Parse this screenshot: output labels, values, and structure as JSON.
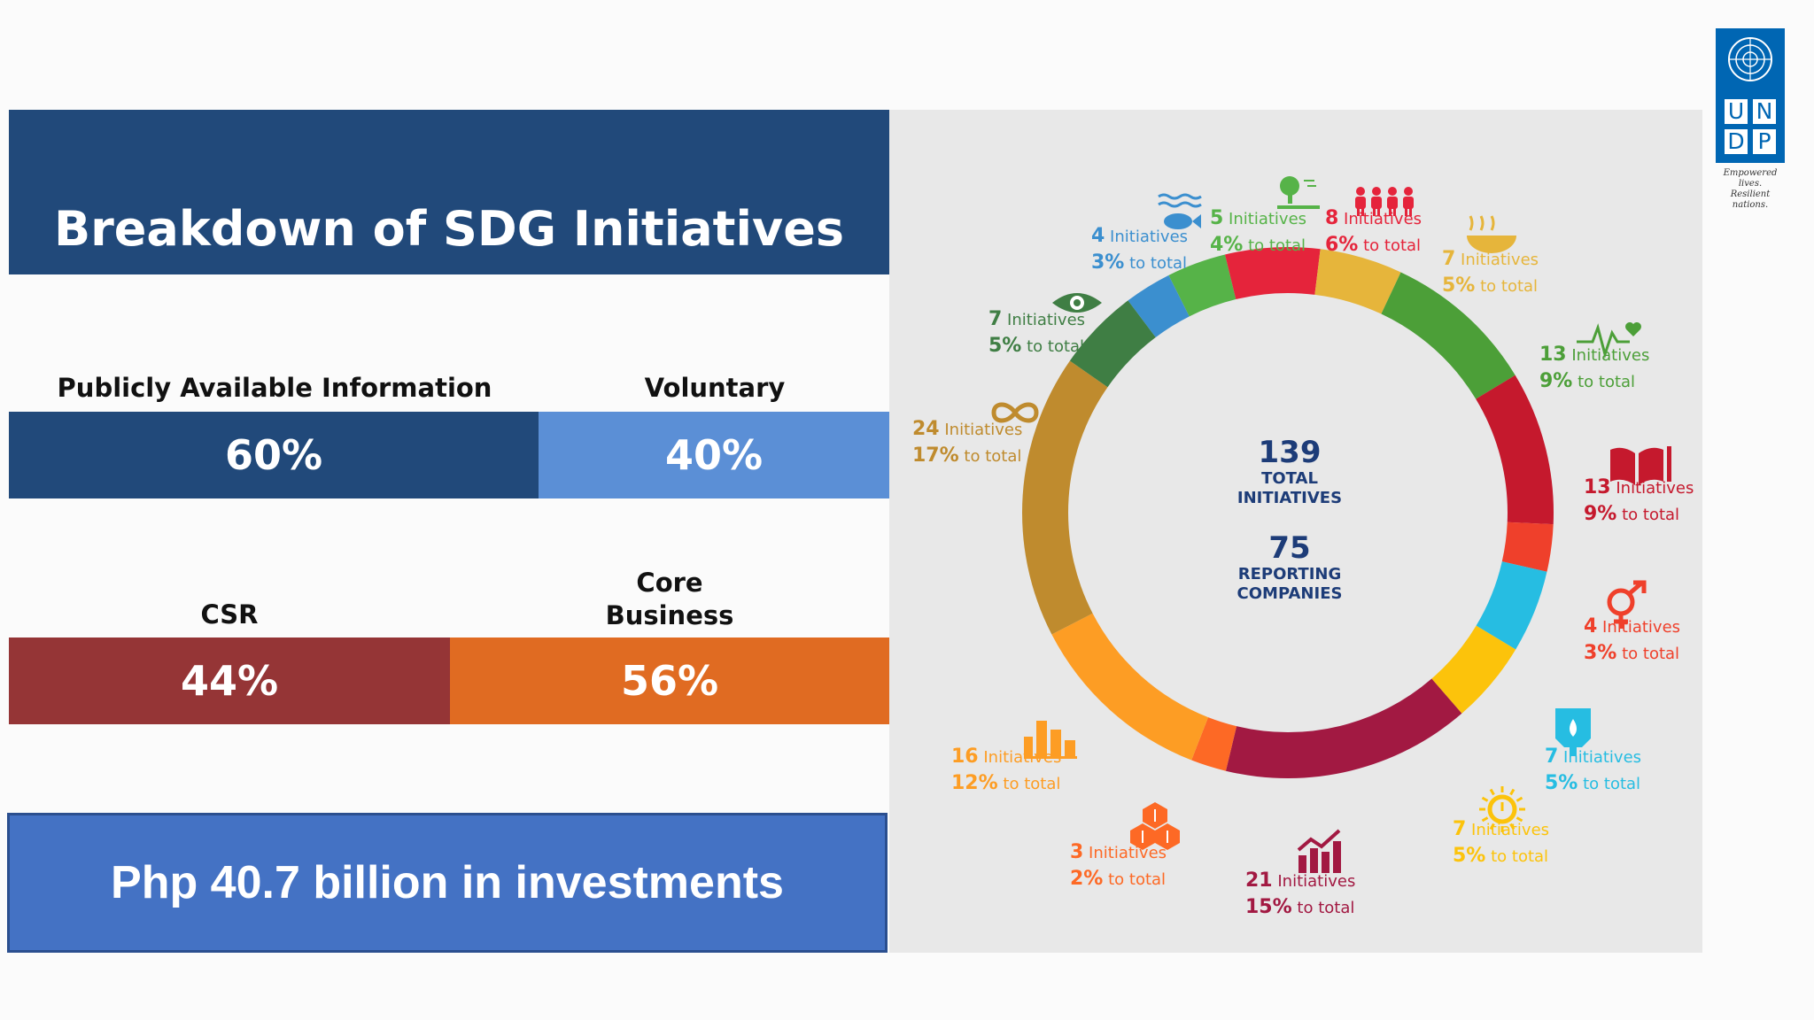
{
  "title": "Breakdown of SDG Initiatives",
  "split_info": {
    "left_label": "Publicly Available Information",
    "right_label": "Voluntary",
    "left_value": "60%",
    "right_value": "40%",
    "left_color": "#21497a",
    "right_color": "#5b8fd6"
  },
  "split_csr": {
    "left_label": "CSR",
    "right_label_line1": "Core",
    "right_label_line2": "Business",
    "left_value": "44%",
    "right_value": "56%",
    "left_color": "#953536",
    "right_color": "#e06b22"
  },
  "investment": "Php 40.7 billion in investments",
  "logo": {
    "letters": [
      "U",
      "N",
      "D",
      "P"
    ],
    "tagline_1": "Empowered lives.",
    "tagline_2": "Resilient nations."
  },
  "chart_data": {
    "type": "pie",
    "center": {
      "total": "139",
      "total_label_1": "TOTAL",
      "total_label_2": "INITIATIVES",
      "companies": "75",
      "companies_label_1": "REPORTING",
      "companies_label_2": "COMPANIES"
    },
    "segments": [
      {
        "n": "4",
        "initiatives": 4,
        "pct": "3%",
        "word": "Initiatives",
        "to_total": "to total",
        "color": "#3b8fcf",
        "icon": "fish-icon"
      },
      {
        "n": "5",
        "initiatives": 5,
        "pct": "4%",
        "word": "Initiatives",
        "to_total": "to total",
        "color": "#56b348",
        "icon": "tree-icon"
      },
      {
        "n": "8",
        "initiatives": 8,
        "pct": "6%",
        "word": "Initiatives",
        "to_total": "to total",
        "color": "#e5243b",
        "icon": "people-icon"
      },
      {
        "n": "7",
        "initiatives": 7,
        "pct": "5%",
        "word": "Initiatives",
        "to_total": "to total",
        "color": "#e6b53b",
        "icon": "food-bowl-icon"
      },
      {
        "n": "13",
        "initiatives": 13,
        "pct": "9%",
        "word": "Initiatives",
        "to_total": "to total",
        "color": "#4c9f38",
        "icon": "heartbeat-icon"
      },
      {
        "n": "13",
        "initiatives": 13,
        "pct": "9%",
        "word": "Initiatives",
        "to_total": "to total",
        "color": "#c5192d",
        "icon": "book-icon"
      },
      {
        "n": "4",
        "initiatives": 4,
        "pct": "3%",
        "word": "Initiatives",
        "to_total": "to total",
        "color": "#ef402b",
        "icon": "gender-icon"
      },
      {
        "n": "7",
        "initiatives": 7,
        "pct": "5%",
        "word": "Initiatives",
        "to_total": "to total",
        "color": "#26bde2",
        "icon": "water-drop-icon"
      },
      {
        "n": "7",
        "initiatives": 7,
        "pct": "5%",
        "word": "Initiatives",
        "to_total": "to total",
        "color": "#fcc30b",
        "icon": "sun-power-icon"
      },
      {
        "n": "21",
        "initiatives": 21,
        "pct": "15%",
        "word": "Initiatives",
        "to_total": "to total",
        "color": "#a21942",
        "icon": "growth-chart-icon"
      },
      {
        "n": "3",
        "initiatives": 3,
        "pct": "2%",
        "word": "Initiatives",
        "to_total": "to total",
        "color": "#fd6925",
        "icon": "cubes-icon"
      },
      {
        "n": "16",
        "initiatives": 16,
        "pct": "12%",
        "word": "Initiatives",
        "to_total": "to total",
        "color": "#fd9d24",
        "icon": "city-icon"
      },
      {
        "n": "24",
        "initiatives": 24,
        "pct": "17%",
        "word": "Initiatives",
        "to_total": "to total",
        "color": "#bf8b2e",
        "icon": "infinity-icon"
      },
      {
        "n": "7",
        "initiatives": 7,
        "pct": "5%",
        "word": "Initiatives",
        "to_total": "to total",
        "color": "#3f7e44",
        "icon": "globe-eye-icon"
      }
    ]
  }
}
